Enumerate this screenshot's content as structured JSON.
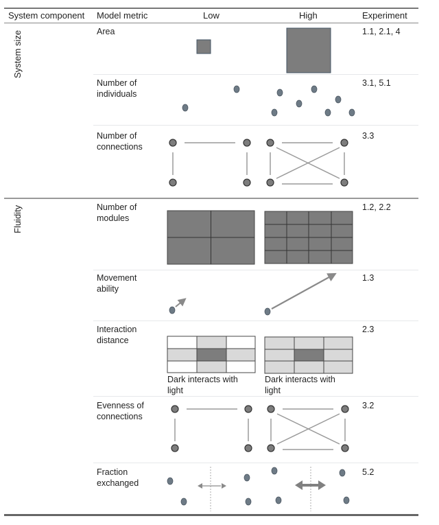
{
  "table": {
    "headers": {
      "component": "System component",
      "metric": "Model metric",
      "low": "Low",
      "high": "High",
      "experiment": "Experiment"
    },
    "groups": [
      {
        "component": "System size",
        "rows": [
          {
            "metric_line1": "Area",
            "metric_line2": "",
            "experiment": "1.1, 2.1, 4"
          },
          {
            "metric_line1": "Number of",
            "metric_line2": "individuals",
            "experiment": "3.1, 5.1"
          },
          {
            "metric_line1": "Number of",
            "metric_line2": "connections",
            "experiment": "3.3"
          }
        ]
      },
      {
        "component": "Fluidity",
        "rows": [
          {
            "metric_line1": "Number of",
            "metric_line2": "modules",
            "experiment": "1.2, 2.2"
          },
          {
            "metric_line1": "Movement",
            "metric_line2": "ability",
            "experiment": "1.3"
          },
          {
            "metric_line1": "Interaction",
            "metric_line2": "distance",
            "experiment": "2.3"
          },
          {
            "metric_line1": "Evenness of",
            "metric_line2": "connections",
            "experiment": "3.2"
          },
          {
            "metric_line1": "Fraction",
            "metric_line2": "exchanged",
            "experiment": "5.2"
          }
        ]
      }
    ],
    "captions": {
      "low_line1": "Dark interacts with",
      "low_line2": "light",
      "high_line1": "Dark interacts with",
      "high_line2": "light"
    }
  },
  "colors": {
    "fill_dark": "#7d7d7d",
    "fill_light": "#d9d9d9",
    "dot_blue": "#6e7b86",
    "line_gray": "#9a9a9a"
  }
}
